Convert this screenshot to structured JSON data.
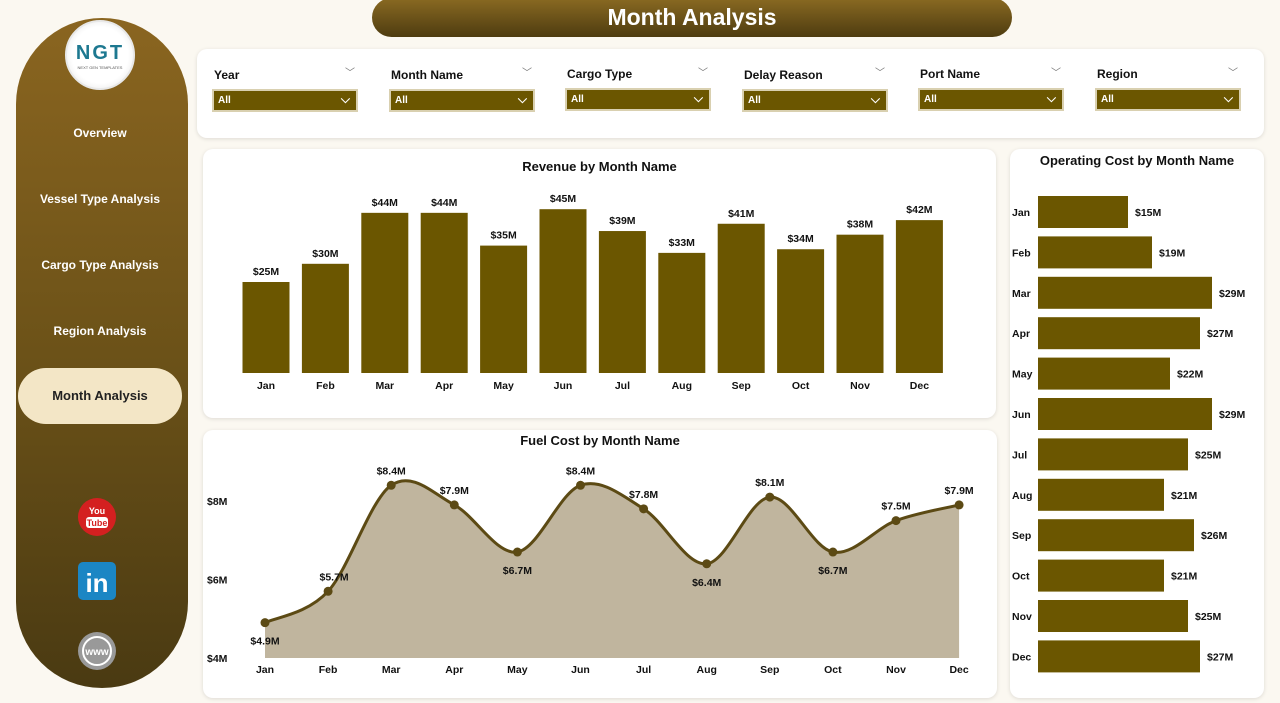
{
  "title": "Month Analysis",
  "logo": {
    "text": "NGT",
    "tagline": "NEXT GEN TEMPLATES"
  },
  "nav": [
    {
      "label": "Overview",
      "active": false
    },
    {
      "label": "Vessel Type Analysis",
      "active": false
    },
    {
      "label": "Cargo Type Analysis",
      "active": false
    },
    {
      "label": "Region Analysis",
      "active": false
    },
    {
      "label": "Month Analysis",
      "active": true
    }
  ],
  "social": [
    "youtube-icon",
    "linkedin-icon",
    "website-globe-icon"
  ],
  "filters": [
    {
      "label": "Year",
      "value": "All"
    },
    {
      "label": "Month Name",
      "value": "All"
    },
    {
      "label": "Cargo Type",
      "value": "All"
    },
    {
      "label": "Delay Reason",
      "value": "All"
    },
    {
      "label": "Port Name",
      "value": "All"
    },
    {
      "label": "Region",
      "value": "All"
    }
  ],
  "colors": {
    "accent": "#6b5600",
    "line": "#5c4a14",
    "area": "#c0b59e",
    "active_nav": "#f3e6c6"
  },
  "chart_data": [
    {
      "type": "bar",
      "title": "Revenue by Month Name",
      "categories": [
        "Jan",
        "Feb",
        "Mar",
        "Apr",
        "May",
        "Jun",
        "Jul",
        "Aug",
        "Sep",
        "Oct",
        "Nov",
        "Dec"
      ],
      "values": [
        25,
        30,
        44,
        44,
        35,
        45,
        39,
        33,
        41,
        34,
        38,
        42
      ],
      "labels": [
        "$25M",
        "$30M",
        "$44M",
        "$44M",
        "$35M",
        "$45M",
        "$39M",
        "$33M",
        "$41M",
        "$34M",
        "$38M",
        "$42M"
      ],
      "unit": "$M"
    },
    {
      "type": "area",
      "title": "Fuel Cost by Month Name",
      "categories": [
        "Jan",
        "Feb",
        "Mar",
        "Apr",
        "May",
        "Jun",
        "Jul",
        "Aug",
        "Sep",
        "Oct",
        "Nov",
        "Dec"
      ],
      "values": [
        4.9,
        5.7,
        8.4,
        7.9,
        6.7,
        8.4,
        7.8,
        6.4,
        8.1,
        6.7,
        7.5,
        7.9
      ],
      "labels": [
        "$4.9M",
        "$5.7M",
        "$8.4M",
        "$7.9M",
        "$6.7M",
        "$8.4M",
        "$7.8M",
        "$6.4M",
        "$8.1M",
        "$6.7M",
        "$7.5M",
        "$7.9M"
      ],
      "yticks": [
        "$4M",
        "$6M",
        "$8M"
      ],
      "ylim": [
        4,
        8.4
      ]
    },
    {
      "type": "bar",
      "orientation": "horizontal",
      "title": "Operating Cost by Month Name",
      "categories": [
        "Jan",
        "Feb",
        "Mar",
        "Apr",
        "May",
        "Jun",
        "Jul",
        "Aug",
        "Sep",
        "Oct",
        "Nov",
        "Dec"
      ],
      "values": [
        15,
        19,
        29,
        27,
        22,
        29,
        25,
        21,
        26,
        21,
        25,
        27
      ],
      "labels": [
        "$15M",
        "$19M",
        "$29M",
        "$27M",
        "$22M",
        "$29M",
        "$25M",
        "$21M",
        "$26M",
        "$21M",
        "$25M",
        "$27M"
      ]
    }
  ]
}
